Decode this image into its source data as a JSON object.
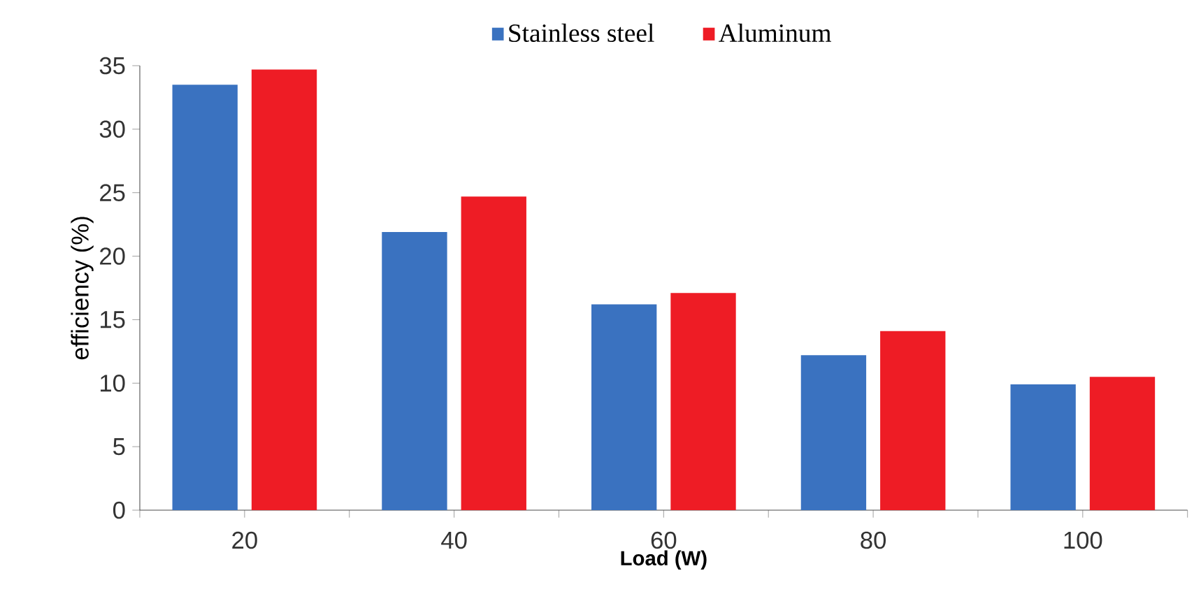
{
  "chart_data": {
    "type": "bar",
    "xlabel": "Load (W)",
    "ylabel": "efficiency (%)",
    "categories": [
      "20",
      "40",
      "60",
      "80",
      "100"
    ],
    "series": [
      {
        "name": "Stainless steel",
        "color": "#3a72c0",
        "values": [
          33.5,
          21.9,
          16.2,
          12.2,
          9.9
        ]
      },
      {
        "name": "Aluminum",
        "color": "#ee1c25",
        "values": [
          34.7,
          24.7,
          17.1,
          14.1,
          10.5
        ]
      }
    ],
    "ylim": [
      0,
      35
    ],
    "yticks": [
      0,
      5,
      10,
      15,
      20,
      25,
      30,
      35
    ],
    "grid": false,
    "legend": "top"
  }
}
